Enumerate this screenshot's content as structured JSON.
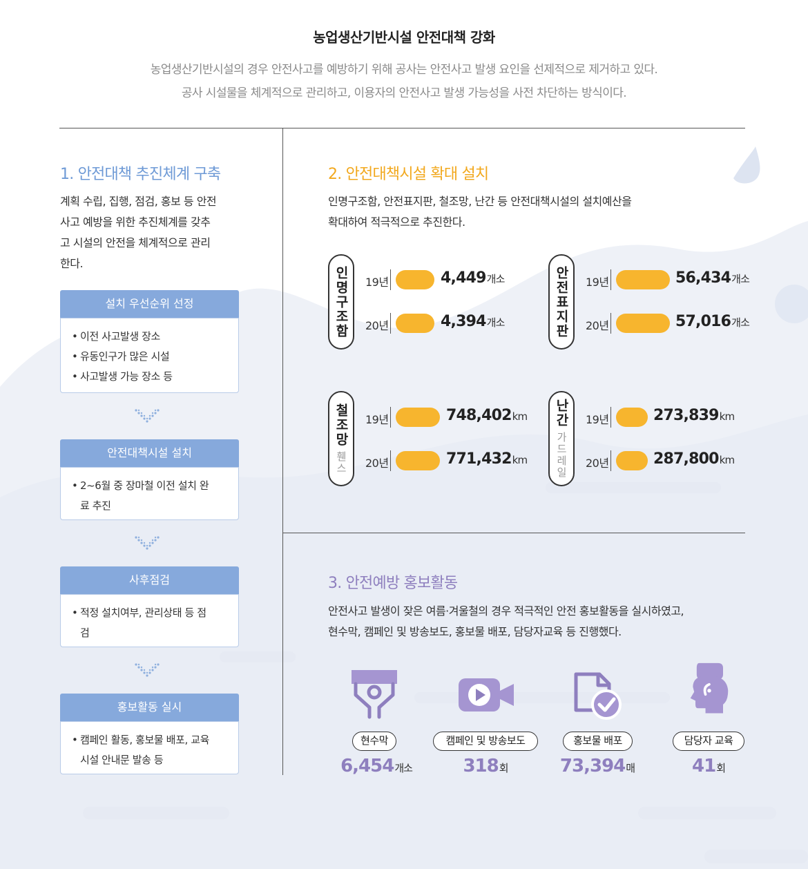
{
  "title": "농업생산기반시설 안전대책 강화",
  "intro": [
    "농업생산기반시설의 경우 안전사고를 예방하기 위해 공사는 안전사고 발생 요인을 선제적으로 제거하고 있다.",
    "공사 시설물을 체계적으로 관리하고, 이용자의 안전사고 발생 가능성을 사전 차단하는 방식이다."
  ],
  "colors": {
    "blue": "#86a9dc",
    "orange": "#f7b52e",
    "purple": "#8e7fbe",
    "section1": "#6e9ad6",
    "section2": "#f2a81d",
    "section3": "#8e7fbe"
  },
  "section1": {
    "title": "1. 안전대책 추진체계 구축",
    "body": [
      "계획 수립, 집행, 점검, 홍보 등 안전",
      "사고 예방을 위한 추진체계를 갖추",
      "고 시설의 안전을 체계적으로 관리",
      "한다."
    ],
    "steps": [
      {
        "title": "설치 우선순위 선정",
        "items": [
          "이전 사고발생 장소",
          "유동인구가 많은 시설",
          "사고발생 가능 장소 등"
        ]
      },
      {
        "title": "안전대책시설 설치",
        "items": [
          "2~6월 중 장마철 이전 설치 완료 추진"
        ]
      },
      {
        "title": "사후점검",
        "items": [
          "적정 설치여부, 관리상태 등 점검"
        ]
      },
      {
        "title": "홍보활동 실시",
        "items": [
          "캠페인 활동, 홍보물 배포, 교육시설 안내문 발송 등"
        ]
      }
    ],
    "arrow_icon": "chevron-dots-down-icon"
  },
  "section2": {
    "title": "2. 안전대책시설 확대 설치",
    "body": [
      "인명구조함, 안전표지판, 철조망, 난간 등 안전대책시설의 설치예산을",
      "확대하여 적극적으로 추진한다."
    ],
    "facilities": [
      {
        "name": "인명구조함",
        "sub": "",
        "rows": [
          {
            "year": "19년",
            "value": "4,449",
            "unit": "개소",
            "num": 4449
          },
          {
            "year": "20년",
            "value": "4,394",
            "unit": "개소",
            "num": 4394
          }
        ]
      },
      {
        "name": "안전표지판",
        "sub": "",
        "rows": [
          {
            "year": "19년",
            "value": "56,434",
            "unit": "개소",
            "num": 56434
          },
          {
            "year": "20년",
            "value": "57,016",
            "unit": "개소",
            "num": 57016
          }
        ]
      },
      {
        "name": "철조망",
        "sub": "휀스",
        "rows": [
          {
            "year": "19년",
            "value": "748,402",
            "unit": "km",
            "num": 748402
          },
          {
            "year": "20년",
            "value": "771,432",
            "unit": "km",
            "num": 771432
          }
        ]
      },
      {
        "name": "난간",
        "sub": "가드레일",
        "rows": [
          {
            "year": "19년",
            "value": "273,839",
            "unit": "km",
            "num": 273839
          },
          {
            "year": "20년",
            "value": "287,800",
            "unit": "km",
            "num": 287800
          }
        ]
      }
    ]
  },
  "section3": {
    "title": "3. 안전예방 홍보활동",
    "body": [
      "안전사고 발생이 잦은 여름·겨울철의 경우 적극적인 안전 홍보활동을 실시하였고,",
      "현수막, 캠페인 및 방송보도, 홍보물 배포, 담당자교육 등 진행했다."
    ],
    "stats": [
      {
        "icon": "banner-person-icon",
        "label": "현수막",
        "value": "6,454",
        "unit": "개소"
      },
      {
        "icon": "video-camera-icon",
        "label": "캠페인 및 방송보도",
        "value": "318",
        "unit": "회"
      },
      {
        "icon": "document-check-icon",
        "label": "홍보물 배포",
        "value": "73,394",
        "unit": "매"
      },
      {
        "icon": "head-speech-icon",
        "label": "담당자 교육",
        "value": "41",
        "unit": "회"
      }
    ]
  }
}
